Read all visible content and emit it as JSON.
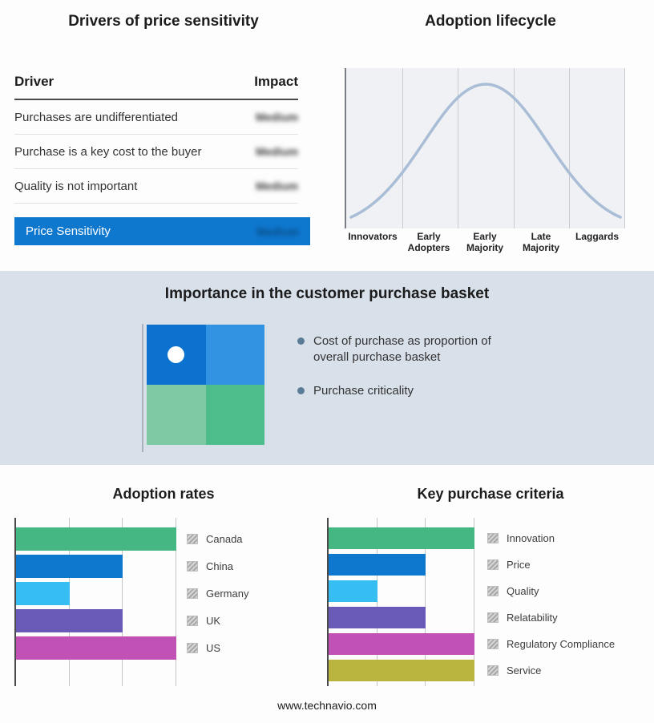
{
  "drivers": {
    "title": "Drivers of price sensitivity",
    "columns": {
      "driver": "Driver",
      "impact": "Impact"
    },
    "rows": [
      {
        "driver": "Purchases are undifferentiated",
        "impact": "Medium"
      },
      {
        "driver": "Purchase is a key cost to the buyer",
        "impact": "Medium"
      },
      {
        "driver": "Quality is not important",
        "impact": "Medium"
      }
    ],
    "summary": {
      "label": "Price Sensitivity",
      "impact": "Medium"
    },
    "accent_color": "#0e78cf"
  },
  "basket": {
    "title": "Importance in the customer purchase basket",
    "bullets": [
      "Cost of purchase as proportion of overall purchase basket",
      "Purchase criticality"
    ],
    "matrix_colors": {
      "top_left": "#0b72cf",
      "top_right": "#3193e2",
      "bottom_left": "#7fcaa4",
      "bottom_right": "#4dbd8b"
    }
  },
  "footer": {
    "url": "www.technavio.com"
  },
  "chart_data": [
    {
      "id": "adoption_lifecycle",
      "type": "line",
      "title": "Adoption lifecycle",
      "categories": [
        "Innovators",
        "Early Adopters",
        "Early Majority",
        "Late Majority",
        "Laggards"
      ],
      "shape": "bell-curve",
      "curve_color": "#a9bdd6",
      "legend_position": "none"
    },
    {
      "id": "adoption_rates",
      "type": "bar",
      "orientation": "horizontal",
      "title": "Adoption rates",
      "categories": [
        "Canada",
        "China",
        "Germany",
        "UK",
        "US"
      ],
      "values": [
        3,
        2,
        1,
        2,
        3
      ],
      "xlim": [
        0,
        3
      ],
      "grid": true,
      "colors": [
        "#45b783",
        "#0e78cf",
        "#36bdf2",
        "#6a5ab8",
        "#c251b5"
      ],
      "legend_position": "right"
    },
    {
      "id": "key_purchase_criteria",
      "type": "bar",
      "orientation": "horizontal",
      "title": "Key purchase criteria",
      "categories": [
        "Innovation",
        "Price",
        "Quality",
        "Relatability",
        "Regulatory Compliance",
        "Service"
      ],
      "values": [
        3,
        2,
        1,
        2,
        3,
        3
      ],
      "xlim": [
        0,
        3
      ],
      "grid": true,
      "colors": [
        "#45b783",
        "#0e78cf",
        "#36bdf2",
        "#6a5ab8",
        "#c251b5",
        "#b9b43d"
      ],
      "legend_position": "right"
    }
  ]
}
